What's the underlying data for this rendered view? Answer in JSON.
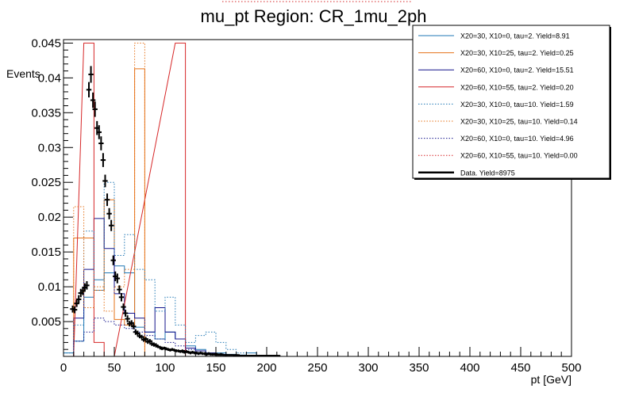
{
  "chart_data": {
    "type": "histogram",
    "title": "mu_pt Region: CR_1mu_2ph",
    "xlabel": "pt [GeV]",
    "ylabel": "Events",
    "xlim": [
      0,
      500
    ],
    "ylim": [
      0,
      0.0455
    ],
    "bin_width": 10,
    "x_ticks": [
      0,
      50,
      100,
      150,
      200,
      250,
      300,
      350,
      400,
      450,
      500
    ],
    "y_ticks": [
      0.005,
      0.01,
      0.015,
      0.02,
      0.025,
      0.03,
      0.035,
      0.04,
      0.045
    ],
    "x_tick_labels": [
      "0",
      "50",
      "100",
      "150",
      "200",
      "250",
      "300",
      "350",
      "400",
      "450",
      "500"
    ],
    "y_tick_labels": [
      "0.005",
      "0.01",
      "0.015",
      "0.02",
      "0.025",
      "0.03",
      "0.035",
      "0.04",
      "0.045"
    ],
    "series": [
      {
        "name": "X20=30, X10=0, tau=2. Yield=8.91",
        "color": "#1f77b4",
        "dash": false,
        "bins": [
          [
            0,
            0.0005
          ],
          [
            10,
            0.0022
          ],
          [
            20,
            0.0085
          ],
          [
            30,
            0.011
          ],
          [
            40,
            0.012
          ],
          [
            50,
            0.013
          ],
          [
            60,
            0.012
          ],
          [
            70,
            0.0042
          ],
          [
            80,
            0.0035
          ],
          [
            90,
            0.0025
          ],
          [
            100,
            0.0035
          ],
          [
            110,
            0.0025
          ],
          [
            120,
            0.0015
          ],
          [
            130,
            0.001
          ],
          [
            140,
            0.0005
          ],
          [
            150,
            0.0005
          ],
          [
            160,
            0.0003
          ],
          [
            170,
            0.0002
          ],
          [
            180,
            0.0005
          ],
          [
            190,
            0
          ]
        ]
      },
      {
        "name": "X20=30, X10=25, tau=2. Yield=0.25",
        "color": "#e6731a",
        "dash": false,
        "bins": [
          [
            0,
            0
          ],
          [
            10,
            0.017
          ],
          [
            20,
            0.017
          ],
          [
            30,
            0.0095
          ],
          [
            40,
            0.0225
          ],
          [
            50,
            0.0053
          ],
          [
            60,
            0.0045
          ],
          [
            70,
            0.0413
          ],
          [
            80,
            0
          ]
        ]
      },
      {
        "name": "X20=60, X10=0, tau=2. Yield=15.51",
        "color": "#14148c",
        "dash": false,
        "bins": [
          [
            0,
            0
          ],
          [
            10,
            0.0055
          ],
          [
            20,
            0.0125
          ],
          [
            30,
            0.0198
          ],
          [
            40,
            0.0155
          ],
          [
            50,
            0.009
          ],
          [
            60,
            0.0062
          ],
          [
            70,
            0.0055
          ],
          [
            80,
            0.0035
          ],
          [
            90,
            0.007
          ],
          [
            100,
            0.0035
          ],
          [
            110,
            0.0025
          ],
          [
            120,
            0.0012
          ],
          [
            130,
            0.0008
          ],
          [
            140,
            0.0005
          ],
          [
            150,
            0.0003
          ],
          [
            160,
            0.0002
          ],
          [
            170,
            0
          ]
        ]
      },
      {
        "name": "X20=60, X10=55, tau=2. Yield=0.20",
        "color": "#d62728",
        "dash": false,
        "bins": [
          [
            0,
            0
          ],
          [
            20,
            0.045
          ],
          [
            30,
            0.002
          ],
          [
            40,
            0
          ],
          [
            110,
            0.045
          ],
          [
            120,
            0
          ]
        ]
      },
      {
        "name": "X20=30, X10=0, tau=10. Yield=1.59",
        "color": "#1f77b4",
        "dash": true,
        "bins": [
          [
            0,
            0.0005
          ],
          [
            10,
            0.0045
          ],
          [
            20,
            0.018
          ],
          [
            30,
            0.0095
          ],
          [
            40,
            0.025
          ],
          [
            50,
            0.0145
          ],
          [
            60,
            0.0175
          ],
          [
            70,
            0.0125
          ],
          [
            80,
            0.011
          ],
          [
            90,
            0.0065
          ],
          [
            100,
            0.0085
          ],
          [
            110,
            0.0045
          ],
          [
            120,
            0.002
          ],
          [
            130,
            0.003
          ],
          [
            140,
            0.0035
          ],
          [
            150,
            0.002
          ],
          [
            160,
            0.001
          ],
          [
            170,
            0.0005
          ],
          [
            180,
            0
          ]
        ]
      },
      {
        "name": "X20=30, X10=25, tau=10. Yield=0.14",
        "color": "#e6731a",
        "dash": true,
        "bins": [
          [
            0,
            0
          ],
          [
            10,
            0.0215
          ],
          [
            20,
            0.007
          ],
          [
            30,
            0.01
          ],
          [
            40,
            0.0065
          ],
          [
            50,
            0.01
          ],
          [
            60,
            0.0125
          ],
          [
            70,
            0.045
          ],
          [
            80,
            0
          ]
        ]
      },
      {
        "name": "X20=60, X10=0, tau=10. Yield=4.96",
        "color": "#14148c",
        "dash": true,
        "bins": [
          [
            0,
            0
          ],
          [
            10,
            0.0022
          ],
          [
            20,
            0.0035
          ],
          [
            30,
            0.0055
          ],
          [
            40,
            0.005
          ],
          [
            50,
            0.0045
          ],
          [
            60,
            0.004
          ],
          [
            70,
            0.0035
          ],
          [
            80,
            0.003
          ],
          [
            90,
            0.0025
          ],
          [
            100,
            0.002
          ],
          [
            110,
            0.0015
          ],
          [
            120,
            0.001
          ],
          [
            130,
            0
          ]
        ]
      },
      {
        "name": "X20=60, X10=55, tau=10. Yield=0.00",
        "color": "#d62728",
        "dash": true,
        "bins": []
      },
      {
        "name": "Data. Yield=8975",
        "color": "#000000",
        "dash": false,
        "points": true,
        "x": [
          9,
          11,
          13,
          15,
          17,
          19,
          21,
          23,
          25,
          27,
          29,
          31,
          33,
          35,
          37,
          39,
          41,
          43,
          45,
          47,
          49,
          51,
          53,
          55,
          57,
          59,
          61,
          63,
          65,
          67,
          69,
          71,
          73,
          75,
          77,
          79,
          81,
          83,
          85,
          87,
          89,
          91,
          93,
          95,
          97,
          99,
          101,
          103,
          105,
          107,
          109,
          111,
          113,
          115,
          117,
          119,
          121,
          123,
          125,
          127,
          129,
          131,
          133,
          135,
          137,
          139,
          141,
          143,
          145,
          147,
          149,
          151,
          153,
          155,
          157,
          159,
          161,
          163,
          165,
          167,
          169,
          171,
          173,
          175,
          177,
          179,
          181,
          183,
          185,
          187,
          189,
          191,
          193,
          195,
          197,
          199,
          201,
          203,
          205,
          207,
          209,
          211
        ],
        "y": [
          0.0068,
          0.0067,
          0.0076,
          0.0082,
          0.0091,
          0.0094,
          0.0099,
          0.0102,
          0.0383,
          0.0405,
          0.0368,
          0.0355,
          0.0328,
          0.0322,
          0.0306,
          0.0282,
          0.0252,
          0.0225,
          0.0205,
          0.0188,
          0.0138,
          0.0115,
          0.0112,
          0.0096,
          0.0085,
          0.0071,
          0.0062,
          0.0054,
          0.0047,
          0.0048,
          0.0043,
          0.0035,
          0.0033,
          0.0029,
          0.0028,
          0.0024,
          0.0025,
          0.0021,
          0.0022,
          0.0018,
          0.0017,
          0.0016,
          0.0014,
          0.0013,
          0.0011,
          0.0012,
          0.0011,
          0.001,
          0.0009,
          0.001,
          0.0009,
          0.0008,
          0.0008,
          0.0007,
          0.0008,
          0.0006,
          0.0007,
          0.0006,
          0.0005,
          0.0006,
          0.0005,
          0.0005,
          0.0004,
          0.0005,
          0.0004,
          0.0004,
          0.0003,
          0.0004,
          0.0003,
          0.0003,
          0.0003,
          0.0003,
          0.0002,
          0.0003,
          0.0002,
          0.0002,
          0.0002,
          0.0002,
          0.0002,
          0.0002,
          0.0001,
          0.0002,
          0.0001,
          0.0001,
          0.0001,
          0.0001,
          0.0001,
          0.0001,
          0.0001,
          0.0001,
          0.0001,
          0.0001,
          0.0001,
          0.0001,
          0.0001,
          0.0001,
          0.0001,
          0.0001,
          0.0001,
          0.0001,
          0.0001,
          0.0001
        ],
        "err": [
          0.0005,
          0.0005,
          0.0005,
          0.0006,
          0.0006,
          0.0006,
          0.0006,
          0.0006,
          0.0011,
          0.0012,
          0.0011,
          0.0011,
          0.001,
          0.001,
          0.001,
          0.001,
          0.0009,
          0.0009,
          0.0008,
          0.0008,
          0.0007,
          0.0007,
          0.0007,
          0.0006,
          0.0006,
          0.0005,
          0.0005,
          0.0005,
          0.0004,
          0.0004,
          0.0004,
          0.0004,
          0.0004,
          0.0003,
          0.0003,
          0.0003,
          0.0003,
          0.0003,
          0.0003,
          0.0003,
          0.0003,
          0.0003,
          0.0002,
          0.0002,
          0.0002,
          0.0002,
          0.0002,
          0.0002,
          0.0002,
          0.0002,
          0.0002,
          0.0002,
          0.0002,
          0.0002,
          0.0002,
          0.0002,
          0.0002,
          0.0002,
          0.0002,
          0.0002,
          0.0002,
          0.0002,
          0.0002,
          0.0002,
          0.0002,
          0.0002,
          0.0002,
          0.0002,
          0.0002,
          0.0002,
          0.0002,
          0.0002,
          0.0001,
          0.0002,
          0.0001,
          0.0001,
          0.0001,
          0.0001,
          0.0001,
          0.0001,
          0.0001,
          0.0001,
          0.0001,
          0.0001,
          0.0001,
          0.0001,
          0.0001,
          0.0001,
          0.0001,
          0.0001,
          0.0001,
          0.0001,
          0.0001,
          0.0001,
          0.0001,
          0.0001,
          0.0001,
          0.0001,
          0.0001,
          0.0001,
          0.0001,
          0.0001
        ]
      }
    ],
    "legend_position": "top-right",
    "grid": false
  }
}
